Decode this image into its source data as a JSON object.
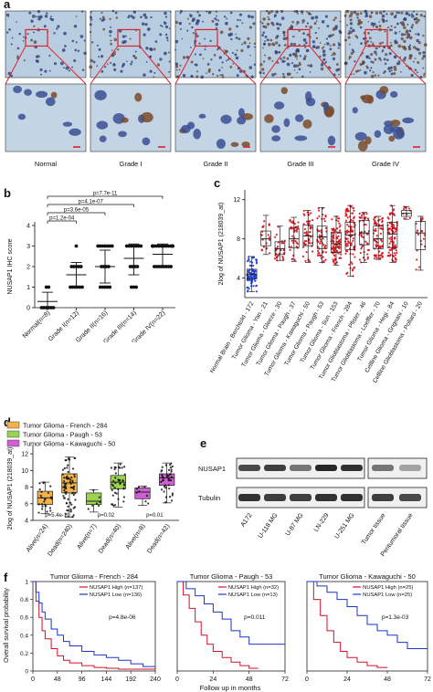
{
  "panel_labels": {
    "a": "a",
    "b": "b",
    "c": "c",
    "d": "d",
    "e": "e",
    "f": "f"
  },
  "panel_a": {
    "grades": [
      "Normal",
      "Grade I",
      "Grade II",
      "Grade III",
      "Grade IV"
    ],
    "tile_tone": [
      0.15,
      0.3,
      0.45,
      0.7,
      0.9
    ]
  },
  "chart_data": [
    {
      "id": "b",
      "type": "scatter",
      "ylabel": "NUSAP1 IHC score",
      "ylim": [
        0,
        4
      ],
      "yticks": [
        0,
        1,
        2,
        3,
        4
      ],
      "categories": [
        "Normal(n=8)",
        "Grade I(n=12)",
        "Grade II(n=16)",
        "Grade III(n=14)",
        "Grade IV(n=22)"
      ],
      "mean": [
        0.3,
        1.6,
        2.0,
        2.4,
        2.6
      ],
      "sd_low": [
        0.0,
        1.0,
        1.2,
        1.6,
        2.0
      ],
      "sd_high": [
        0.75,
        2.2,
        2.8,
        3.1,
        3.1
      ],
      "points": [
        [
          0,
          0,
          0,
          0,
          0,
          1,
          1,
          0
        ],
        [
          1,
          1,
          1,
          1,
          1,
          1,
          2,
          2,
          2,
          2,
          2,
          3
        ],
        [
          1,
          1,
          1,
          1,
          1,
          2,
          2,
          2,
          2,
          3,
          3,
          3,
          3,
          3,
          3,
          3
        ],
        [
          1,
          1,
          1,
          2,
          2,
          2,
          2,
          3,
          3,
          3,
          3,
          3,
          3,
          3
        ],
        [
          2,
          2,
          2,
          2,
          2,
          2,
          2,
          2,
          3,
          3,
          3,
          3,
          3,
          3,
          3,
          3,
          3,
          3,
          3,
          3,
          3,
          3
        ]
      ],
      "pvalues": [
        "p=7.7e-11",
        "p=4.1e-07",
        "p=3.6e-05",
        "p=1.2e-04"
      ]
    },
    {
      "id": "c",
      "type": "box",
      "ylabel": "2log of NUSAP1 (218039_at)",
      "ylim": [
        2,
        13
      ],
      "yticks": [
        4,
        8,
        12
      ],
      "categories": [
        "Normal Brain - Berchtold - 172",
        "Tumor Glioma - Yan - 21",
        "Tumor Glioma - Gleeze - 30",
        "Tumor Glioma - Paugh - 37",
        "Tumor Glioma - Kawaguchi - 50",
        "Tumor Glioma - Paugh - 53",
        "Tumor Glioma - Sun - 153",
        "Tumor Glioma - French - 284",
        "Tumor Glioblastoma - Pfister - 46",
        "Tumor Glioblastoma - Loeffler - 70",
        "Tumor Glioma - Hegi - 84",
        "Cellline Glioma - Grignani - 10",
        "Cellline Glioblastoma - Pollard - 20"
      ],
      "box": [
        {
          "min": 2.6,
          "q1": 3.9,
          "median": 4.4,
          "q3": 4.9,
          "max": 6.2
        },
        {
          "min": 6.4,
          "q1": 7.3,
          "median": 8.0,
          "q3": 8.8,
          "max": 10.4
        },
        {
          "min": 5.8,
          "q1": 6.4,
          "median": 7.0,
          "q3": 7.7,
          "max": 9.3
        },
        {
          "min": 5.7,
          "q1": 7.1,
          "median": 8.0,
          "q3": 9.1,
          "max": 10.2
        },
        {
          "min": 5.6,
          "q1": 7.3,
          "median": 8.3,
          "q3": 9.4,
          "max": 10.9
        },
        {
          "min": 5.6,
          "q1": 7.0,
          "median": 8.2,
          "q3": 9.3,
          "max": 11.2
        },
        {
          "min": 5.3,
          "q1": 6.6,
          "median": 7.5,
          "q3": 8.7,
          "max": 10.3
        },
        {
          "min": 4.2,
          "q1": 6.9,
          "median": 8.4,
          "q3": 9.7,
          "max": 11.4
        },
        {
          "min": 5.6,
          "q1": 7.4,
          "median": 8.6,
          "q3": 9.9,
          "max": 10.7
        },
        {
          "min": 5.9,
          "q1": 7.0,
          "median": 8.0,
          "q3": 9.3,
          "max": 10.3
        },
        {
          "min": 5.6,
          "q1": 7.1,
          "median": 8.5,
          "q3": 9.7,
          "max": 11.4
        },
        {
          "min": 10.0,
          "q1": 10.3,
          "median": 10.6,
          "q3": 10.9,
          "max": 11.3
        },
        {
          "min": 4.8,
          "q1": 6.9,
          "median": 8.6,
          "q3": 9.8,
          "max": 10.3
        }
      ],
      "n": [
        172,
        21,
        30,
        37,
        50,
        53,
        153,
        284,
        46,
        70,
        84,
        10,
        20
      ],
      "colors": {
        "normal": "#1f3fd6",
        "tumor": "#d8101a"
      }
    },
    {
      "id": "d",
      "type": "box",
      "ylabel": "2log of NUSAP1 (218039_at)",
      "ylim": [
        4,
        13
      ],
      "yticks": [
        4,
        6,
        8,
        10,
        12
      ],
      "legend": [
        {
          "name": "Tumor Glioma - French - 284",
          "color": "#f3b34a"
        },
        {
          "name": "Tumor Glioma - Paugh - 53",
          "color": "#9ad34f"
        },
        {
          "name": "Tumor Glioma - Kawaguchi - 50",
          "color": "#cf5fd3"
        }
      ],
      "categories": [
        "Alive(n=24)",
        "Dead(n=240)",
        "Alive(n=7)",
        "Dead(n=40)",
        "Alive(n=8)",
        "Dead(n=42)"
      ],
      "box": [
        {
          "min": 4.8,
          "q1": 5.9,
          "median": 6.7,
          "q3": 7.5,
          "max": 8.6
        },
        {
          "min": 4.4,
          "q1": 7.3,
          "median": 8.5,
          "q3": 9.6,
          "max": 11.6
        },
        {
          "min": 5.0,
          "q1": 5.9,
          "median": 6.3,
          "q3": 7.3,
          "max": 7.7
        },
        {
          "min": 5.6,
          "q1": 7.8,
          "median": 8.6,
          "q3": 9.4,
          "max": 10.9
        },
        {
          "min": 5.8,
          "q1": 6.6,
          "median": 7.4,
          "q3": 7.9,
          "max": 8.1
        },
        {
          "min": 6.1,
          "q1": 8.2,
          "median": 9.1,
          "q3": 9.6,
          "max": 10.9
        }
      ],
      "n": [
        24,
        240,
        7,
        40,
        8,
        42
      ],
      "pvalues": [
        "p=5.4e-11",
        "p=0.02",
        "p=0.01"
      ]
    },
    {
      "id": "f1",
      "type": "line",
      "title": "Tumor Glioma - French - 284",
      "xticks": [
        0,
        48,
        96,
        144,
        192,
        240
      ],
      "xlim": [
        0,
        240
      ],
      "yticks": [
        0,
        0.2,
        0.4,
        0.6,
        0.8,
        1
      ],
      "ylim": [
        0,
        1
      ],
      "pvalue": "p=4.8e-06",
      "series": [
        {
          "name": "NUSAP1 High (n=137)",
          "color": "#d0112b",
          "x": [
            0,
            6,
            12,
            18,
            24,
            36,
            48,
            60,
            72,
            96,
            120,
            144,
            168,
            192,
            216,
            240
          ],
          "y": [
            1,
            0.78,
            0.6,
            0.45,
            0.36,
            0.25,
            0.17,
            0.12,
            0.09,
            0.06,
            0.04,
            0.03,
            0.02,
            0.02,
            0.02,
            0.02
          ]
        },
        {
          "name": "NUSAP1 Low (n=136)",
          "color": "#1a36c6",
          "x": [
            0,
            6,
            12,
            18,
            24,
            36,
            48,
            60,
            72,
            96,
            120,
            144,
            168,
            192,
            216,
            240
          ],
          "y": [
            1,
            0.88,
            0.76,
            0.66,
            0.58,
            0.47,
            0.4,
            0.33,
            0.28,
            0.22,
            0.18,
            0.15,
            0.12,
            0.08,
            0.05,
            0.05
          ]
        }
      ]
    },
    {
      "id": "f2",
      "type": "line",
      "title": "Tumor Glioma - Paugh - 53",
      "xticks": [
        0,
        24,
        48,
        72
      ],
      "xlim": [
        0,
        72
      ],
      "ylim": [
        0,
        1
      ],
      "pvalue": "p=0.011",
      "series": [
        {
          "name": "NUSAP1 High (n=32)",
          "color": "#d0112b",
          "x": [
            0,
            4,
            8,
            12,
            16,
            20,
            24,
            30,
            36,
            42,
            48,
            54
          ],
          "y": [
            1,
            0.85,
            0.7,
            0.55,
            0.4,
            0.3,
            0.22,
            0.15,
            0.1,
            0.06,
            0.03,
            0.03
          ]
        },
        {
          "name": "NUSAP1 Low (n=13)",
          "color": "#1a36c6",
          "x": [
            0,
            6,
            12,
            18,
            24,
            30,
            36,
            42,
            48,
            54,
            60,
            72
          ],
          "y": [
            1,
            0.92,
            0.84,
            0.75,
            0.66,
            0.58,
            0.45,
            0.38,
            0.3,
            0.3,
            0.3,
            0.3
          ]
        }
      ]
    },
    {
      "id": "f3",
      "type": "line",
      "title": "Tumor Glioma - Kawaguchi - 50",
      "xticks": [
        0,
        24,
        48,
        72
      ],
      "xlim": [
        0,
        72
      ],
      "ylim": [
        0,
        1
      ],
      "pvalue": "p=1.3e-03",
      "series": [
        {
          "name": "NUSAP1 High (n=25)",
          "color": "#d0112b",
          "x": [
            0,
            4,
            8,
            12,
            16,
            20,
            24,
            30,
            36,
            42,
            48
          ],
          "y": [
            1,
            0.8,
            0.62,
            0.45,
            0.32,
            0.22,
            0.15,
            0.1,
            0.06,
            0.04,
            0.04
          ]
        },
        {
          "name": "NUSAP1 Low (n=25)",
          "color": "#1a36c6",
          "x": [
            0,
            6,
            12,
            18,
            24,
            30,
            36,
            42,
            48,
            54,
            60,
            72
          ],
          "y": [
            1,
            0.95,
            0.88,
            0.8,
            0.72,
            0.62,
            0.52,
            0.45,
            0.4,
            0.32,
            0.25,
            0.25
          ]
        }
      ]
    }
  ],
  "panel_f": {
    "ylabel": "Overall survival probability",
    "xlabel": "Follow up in months"
  },
  "panel_e": {
    "rows": [
      "NUSAP1",
      "Tubulin"
    ],
    "lanes": [
      "A172",
      "U-118 MG",
      "U-87 MG",
      "LN-229",
      "U-251 MG",
      "Tumor tissue",
      "Peritumoral tissue"
    ],
    "nusap1_intensity": [
      0.75,
      0.8,
      0.55,
      0.9,
      0.85,
      0.55,
      0.35
    ],
    "tubulin_intensity": [
      0.85,
      0.8,
      0.8,
      0.85,
      0.85,
      0.8,
      0.75
    ]
  }
}
